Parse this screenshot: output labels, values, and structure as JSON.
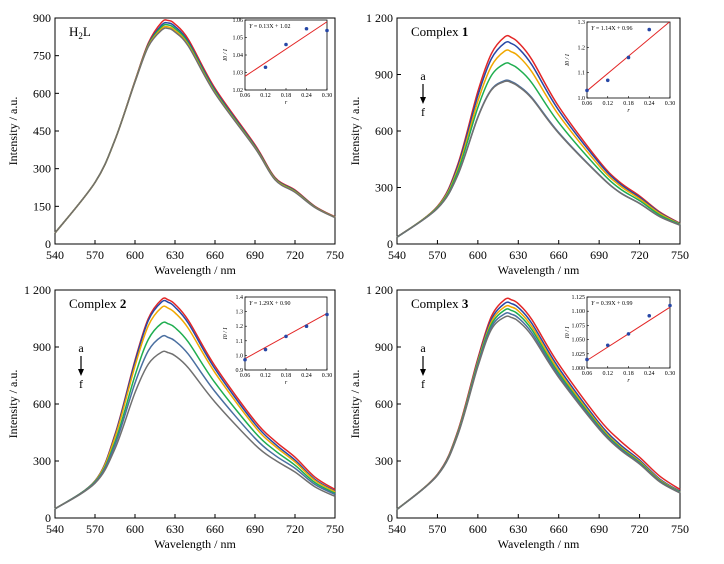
{
  "chart_data": [
    {
      "type": "line",
      "title": "H2L",
      "label_main": "H",
      "label_sub": "2",
      "label_tail": "L",
      "xlabel": "Wavelength / nm",
      "ylabel": "Intensity / a.u.",
      "xlim": [
        540,
        750
      ],
      "ylim": [
        0,
        900
      ],
      "xticks": [
        "540",
        "570",
        "600",
        "630",
        "660",
        "690",
        "720",
        "750"
      ],
      "yticks": [
        "0",
        "150",
        "300",
        "450",
        "600",
        "750",
        "900"
      ],
      "grid": false,
      "legend": "none",
      "series_x": [
        540,
        570,
        585,
        600,
        610,
        620,
        625,
        630,
        640,
        660,
        690,
        705,
        720,
        735,
        750
      ],
      "series": [
        {
          "color": "#e32626",
          "values": [
            44,
            245,
            415,
            650,
            800,
            883,
            890,
            876,
            815,
            620,
            395,
            265,
            215,
            150,
            108
          ]
        },
        {
          "color": "#2747a6",
          "values": [
            44,
            245,
            415,
            648,
            795,
            872,
            880,
            866,
            806,
            613,
            390,
            262,
            212,
            148,
            107
          ]
        },
        {
          "color": "#1fae50",
          "values": [
            44,
            245,
            415,
            647,
            792,
            865,
            872,
            858,
            800,
            608,
            387,
            260,
            210,
            147,
            106
          ]
        },
        {
          "color": "#f0a800",
          "values": [
            44,
            245,
            415,
            646,
            789,
            858,
            864,
            850,
            793,
            603,
            384,
            258,
            208,
            146,
            106
          ]
        },
        {
          "color": "#707070",
          "values": [
            44,
            245,
            415,
            645,
            786,
            852,
            858,
            844,
            788,
            600,
            382,
            256,
            206,
            145,
            105
          ]
        }
      ],
      "inset": {
        "equation_prefix": "Y",
        "equation_rest": " = 0.13X + 1.02",
        "ylabel": "I0 / I",
        "xlabel": "r",
        "xlim": [
          0.06,
          0.3
        ],
        "ylim": [
          1.02,
          1.06
        ],
        "xticks": [
          "0.06",
          "0.12",
          "0.18",
          "0.24",
          "0.30"
        ],
        "yticks": [
          "1.02",
          "1.03",
          "1.04",
          "1.05",
          "1.06"
        ],
        "points": [
          [
            0.12,
            1.033
          ],
          [
            0.18,
            1.046
          ],
          [
            0.24,
            1.055
          ],
          [
            0.3,
            1.054
          ]
        ],
        "fit": {
          "slope": 0.13,
          "intercept": 1.02
        }
      }
    },
    {
      "type": "line",
      "title": "Complex 1",
      "label_main": "Complex ",
      "label_bold": "1",
      "xlabel": "Wavelength / nm",
      "ylabel": "Intensity / a.u.",
      "xlim": [
        540,
        750
      ],
      "ylim": [
        0,
        1200
      ],
      "xticks": [
        "540",
        "570",
        "600",
        "630",
        "660",
        "690",
        "720",
        "750"
      ],
      "yticks": [
        "0",
        "300",
        "600",
        "900",
        "1 200"
      ],
      "grid": false,
      "legend": "none",
      "arrow_from": "a",
      "arrow_to": "f",
      "series_x": [
        540,
        570,
        585,
        600,
        610,
        620,
        625,
        630,
        640,
        660,
        690,
        705,
        720,
        735,
        750
      ],
      "series": [
        {
          "color": "#e32626",
          "values": [
            36,
            200,
            420,
            810,
            1010,
            1100,
            1096,
            1070,
            980,
            730,
            440,
            330,
            255,
            170,
            110
          ]
        },
        {
          "color": "#2747a6",
          "values": [
            36,
            198,
            410,
            788,
            983,
            1068,
            1064,
            1040,
            952,
            710,
            430,
            322,
            248,
            166,
            108
          ]
        },
        {
          "color": "#f0a800",
          "values": [
            36,
            196,
            396,
            758,
            944,
            1025,
            1020,
            998,
            915,
            685,
            415,
            312,
            240,
            161,
            106
          ]
        },
        {
          "color": "#1fae50",
          "values": [
            36,
            193,
            383,
            725,
            894,
            958,
            952,
            930,
            856,
            645,
            395,
            296,
            230,
            154,
            104
          ]
        },
        {
          "color": "#4a6fa0",
          "values": [
            36,
            189,
            365,
            675,
            820,
            868,
            862,
            842,
            778,
            592,
            368,
            276,
            216,
            146,
            101
          ]
        },
        {
          "color": "#707070",
          "values": [
            36,
            189,
            364,
            672,
            817,
            863,
            857,
            837,
            773,
            588,
            366,
            275,
            215,
            145,
            100
          ]
        }
      ],
      "inset": {
        "equation_prefix": "Y",
        "equation_rest": " = 1.14X + 0.96",
        "ylabel": "I0 / I",
        "xlabel": "r",
        "xlim": [
          0.06,
          0.3
        ],
        "ylim": [
          1.0,
          1.3
        ],
        "xticks": [
          "0.06",
          "0.12",
          "0.18",
          "0.24",
          "0.30"
        ],
        "yticks": [
          "1.0",
          "1.1",
          "1.2",
          "1.3"
        ],
        "points": [
          [
            0.06,
            1.03
          ],
          [
            0.12,
            1.07
          ],
          [
            0.18,
            1.16
          ],
          [
            0.24,
            1.27
          ]
        ],
        "fit": {
          "slope": 1.14,
          "intercept": 0.96
        }
      }
    },
    {
      "type": "line",
      "title": "Complex 2",
      "label_main": "Complex ",
      "label_bold": "2",
      "xlabel": "Wavelength / nm",
      "ylabel": "Intensity / a.u.",
      "xlim": [
        540,
        750
      ],
      "ylim": [
        0,
        1200
      ],
      "xticks": [
        "540",
        "570",
        "600",
        "630",
        "660",
        "690",
        "720",
        "750"
      ],
      "yticks": [
        "0",
        "300",
        "600",
        "900",
        "1 200"
      ],
      "grid": false,
      "legend": "none",
      "arrow_from": "a",
      "arrow_to": "f",
      "series_x": [
        540,
        570,
        585,
        600,
        610,
        620,
        625,
        630,
        640,
        660,
        690,
        705,
        720,
        735,
        750
      ],
      "series": [
        {
          "color": "#e32626",
          "values": [
            48,
            195,
            440,
            830,
            1050,
            1150,
            1148,
            1125,
            1040,
            800,
            510,
            405,
            320,
            215,
            150
          ]
        },
        {
          "color": "#2747a6",
          "values": [
            48,
            195,
            435,
            822,
            1040,
            1137,
            1135,
            1110,
            1025,
            785,
            495,
            390,
            305,
            203,
            142
          ]
        },
        {
          "color": "#f0a800",
          "values": [
            48,
            193,
            425,
            800,
            1012,
            1108,
            1104,
            1080,
            998,
            765,
            480,
            378,
            295,
            197,
            138
          ]
        },
        {
          "color": "#1fae50",
          "values": [
            48,
            190,
            400,
            750,
            940,
            1025,
            1022,
            1002,
            926,
            712,
            450,
            355,
            278,
            186,
            130
          ]
        },
        {
          "color": "#4a6fa0",
          "values": [
            48,
            187,
            385,
            710,
            880,
            955,
            950,
            932,
            862,
            665,
            420,
            330,
            262,
            176,
            124
          ]
        },
        {
          "color": "#707070",
          "values": [
            48,
            183,
            365,
            660,
            810,
            873,
            870,
            854,
            790,
            610,
            385,
            305,
            242,
            164,
            114
          ]
        }
      ],
      "inset": {
        "equation_prefix": "Y",
        "equation_rest": " = 1.29X + 0.90",
        "ylabel": "I0 / I",
        "xlabel": "r",
        "xlim": [
          0.06,
          0.3
        ],
        "ylim": [
          0.9,
          1.4
        ],
        "xticks": [
          "0.06",
          "0.12",
          "0.18",
          "0.24",
          "0.30"
        ],
        "yticks": [
          "0.9",
          "1.0",
          "1.1",
          "1.2",
          "1.3",
          "1.4"
        ],
        "points": [
          [
            0.06,
            0.97
          ],
          [
            0.12,
            1.04
          ],
          [
            0.18,
            1.13
          ],
          [
            0.24,
            1.2
          ],
          [
            0.3,
            1.28
          ]
        ],
        "fit": {
          "slope": 1.29,
          "intercept": 0.9
        }
      }
    },
    {
      "type": "line",
      "title": "Complex 3",
      "label_main": "Complex ",
      "label_bold": "3",
      "xlabel": "Wavelength / nm",
      "ylabel": "Intensity / a.u.",
      "xlim": [
        540,
        750
      ],
      "ylim": [
        0,
        1200
      ],
      "xticks": [
        "540",
        "570",
        "600",
        "630",
        "660",
        "690",
        "720",
        "750"
      ],
      "yticks": [
        "0",
        "300",
        "600",
        "900",
        "1 200"
      ],
      "grid": false,
      "legend": "none",
      "arrow_from": "a",
      "arrow_to": "f",
      "series_x": [
        540,
        570,
        585,
        600,
        610,
        620,
        625,
        630,
        640,
        660,
        690,
        705,
        720,
        735,
        750
      ],
      "series": [
        {
          "color": "#e32626",
          "values": [
            45,
            230,
            455,
            840,
            1060,
            1150,
            1148,
            1128,
            1045,
            810,
            520,
            410,
            320,
            220,
            150
          ]
        },
        {
          "color": "#2747a6",
          "values": [
            45,
            228,
            450,
            830,
            1045,
            1130,
            1128,
            1108,
            1025,
            790,
            500,
            390,
            305,
            205,
            140
          ]
        },
        {
          "color": "#f0a800",
          "values": [
            45,
            227,
            446,
            822,
            1032,
            1112,
            1110,
            1090,
            1008,
            775,
            490,
            380,
            298,
            200,
            137
          ]
        },
        {
          "color": "#1fae50",
          "values": [
            45,
            226,
            442,
            814,
            1018,
            1095,
            1092,
            1072,
            992,
            762,
            482,
            374,
            293,
            196,
            135
          ]
        },
        {
          "color": "#4a6fa0",
          "values": [
            45,
            225,
            438,
            805,
            1005,
            1075,
            1072,
            1053,
            975,
            750,
            475,
            368,
            288,
            193,
            133
          ]
        },
        {
          "color": "#707070",
          "values": [
            45,
            224,
            435,
            797,
            992,
            1058,
            1055,
            1036,
            960,
            740,
            468,
            363,
            284,
            190,
            131
          ]
        }
      ],
      "inset": {
        "equation_prefix": "Y",
        "equation_rest": " = 0.39X + 0.99",
        "ylabel": "I0 / I",
        "xlabel": "r",
        "xlim": [
          0.06,
          0.3
        ],
        "ylim": [
          1.0,
          1.125
        ],
        "xticks": [
          "0.06",
          "0.12",
          "0.18",
          "0.24",
          "0.30"
        ],
        "yticks": [
          "1.000",
          "1.025",
          "1.050",
          "1.075",
          "1.100",
          "1.125"
        ],
        "points": [
          [
            0.06,
            1.015
          ],
          [
            0.12,
            1.04
          ],
          [
            0.18,
            1.06
          ],
          [
            0.24,
            1.092
          ],
          [
            0.3,
            1.11
          ]
        ],
        "fit": {
          "slope": 0.39,
          "intercept": 0.99
        }
      }
    }
  ]
}
